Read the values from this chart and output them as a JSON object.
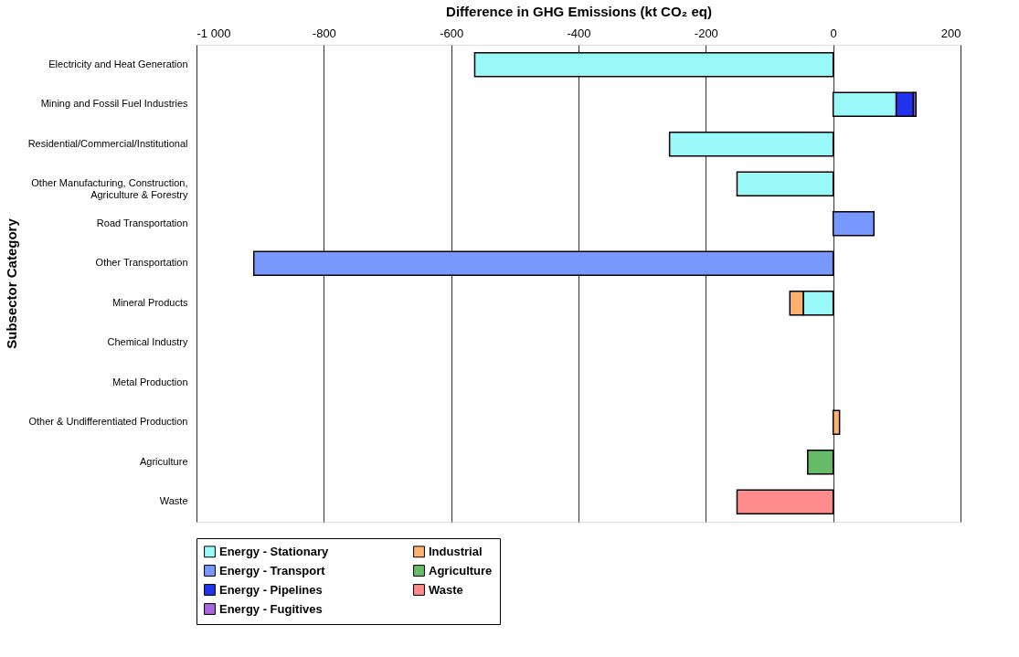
{
  "chart_data": {
    "type": "bar",
    "orientation": "horizontal",
    "stacked": true,
    "xlabel": "Difference in GHG Emissions (kt CO₂ eq)",
    "ylabel": "Subsector Category",
    "categories": [
      "Electricity and Heat Generation",
      "Mining and Fossil Fuel Industries",
      "Residential/Commercial/Institutional",
      "Other Manufacturing, Construction, Agriculture & Forestry",
      "Road Transportation",
      "Other Transportation",
      "Mineral Products",
      "Chemical Industry",
      "Metal Production",
      "Other & Undifferentiated Production",
      "Agriculture",
      "Waste"
    ],
    "series": [
      {
        "name": "Energy - Stationary",
        "color": "#99f8f8",
        "values": [
          -563,
          99,
          -257,
          -151,
          null,
          null,
          -47,
          null,
          null,
          null,
          null,
          null
        ]
      },
      {
        "name": "Energy - Transport",
        "color": "#7799ff",
        "values": [
          null,
          null,
          null,
          null,
          64,
          -910,
          null,
          null,
          null,
          null,
          null,
          null
        ]
      },
      {
        "name": "Energy - Pipelines",
        "color": "#2233ee",
        "values": [
          null,
          27,
          null,
          null,
          null,
          null,
          null,
          null,
          null,
          null,
          null,
          null
        ]
      },
      {
        "name": "Energy - Fugitives",
        "color": "#aa66dd",
        "values": [
          null,
          4,
          null,
          null,
          null,
          null,
          null,
          null,
          null,
          null,
          null,
          null
        ]
      },
      {
        "name": "Industrial",
        "color": "#ffb070",
        "values": [
          null,
          null,
          null,
          null,
          null,
          null,
          -21,
          null,
          null,
          10,
          null,
          null
        ]
      },
      {
        "name": "Agriculture",
        "color": "#66bb66",
        "values": [
          null,
          null,
          null,
          null,
          null,
          null,
          null,
          null,
          null,
          null,
          -40,
          null
        ]
      },
      {
        "name": "Waste",
        "color": "#ff8c8c",
        "values": [
          null,
          null,
          null,
          null,
          null,
          null,
          null,
          null,
          null,
          null,
          null,
          -151
        ]
      }
    ],
    "xlim": [
      -1000,
      200
    ],
    "xticks": [
      {
        "value": -1000,
        "label": "-1 000"
      },
      -800,
      -600,
      -400,
      -200,
      0,
      200
    ],
    "grid": "x",
    "legend": "bottom"
  }
}
